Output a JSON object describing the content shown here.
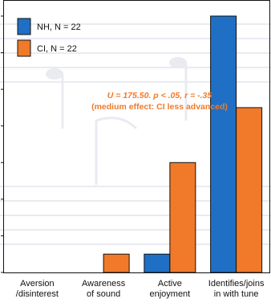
{
  "chart_data": {
    "type": "bar",
    "categories": [
      [
        "Aversion",
        "/disinterest"
      ],
      [
        "Awareness",
        "of sound"
      ],
      [
        "Active",
        "enjoyment"
      ],
      [
        "Identifies/joins",
        "in with tune"
      ]
    ],
    "series": [
      {
        "name": "NH, N = 22",
        "color": "#1f6fc5",
        "values": [
          0,
          0,
          1,
          14
        ]
      },
      {
        "name": "CI, N = 22",
        "color": "#f07a2a",
        "values": [
          0,
          1,
          6,
          9
        ]
      }
    ],
    "ylim": [
      0,
      14
    ],
    "grid": false,
    "legend_position": "top-left",
    "annotation": {
      "line1": "U = 175.50. p < .05, r = -.35",
      "line2": "(medium effect: CI less advanced)"
    }
  }
}
